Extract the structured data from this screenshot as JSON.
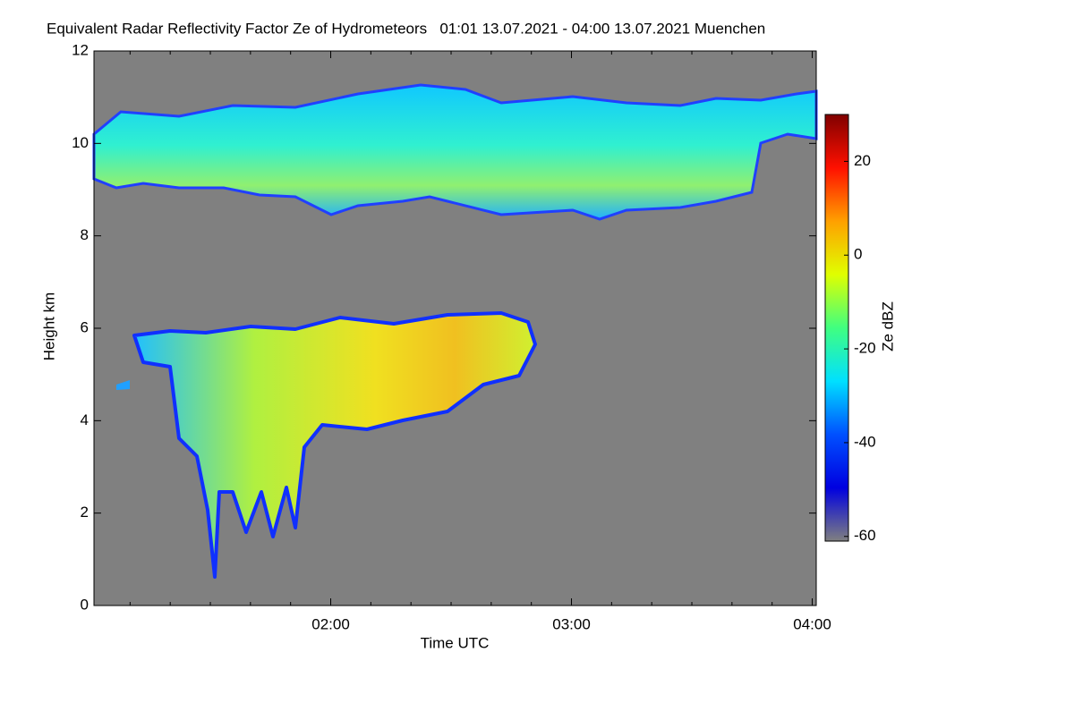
{
  "chart_data": {
    "type": "heatmap",
    "title": "Equivalent Radar Reflectivity Factor Ze of Hydrometeors   01:01 13.07.2021 - 04:00 13.07.2021 Muenchen",
    "x_label": "Time UTC",
    "y_label": "Height km",
    "colorbar_label": "Ze dBZ",
    "xlim": [
      61,
      241
    ],
    "xticks": [
      {
        "value": 120,
        "label": "02:00"
      },
      {
        "value": 180,
        "label": "03:00"
      },
      {
        "value": 240,
        "label": "04:00"
      }
    ],
    "xminorticks": [
      70,
      80,
      90,
      100,
      110,
      130,
      140,
      150,
      160,
      170,
      190,
      200,
      210,
      220,
      230
    ],
    "ylim": [
      0,
      12
    ],
    "yticks": [
      0,
      2,
      4,
      6,
      8,
      10,
      12
    ],
    "zlim": [
      -61,
      30
    ],
    "zticks": [
      -60,
      -40,
      -20,
      0,
      20
    ],
    "colormap": [
      "#808080",
      "#0000e0",
      "#0050ff",
      "#00e0ff",
      "#40ff80",
      "#e0ff00",
      "#ffa000",
      "#ff1000",
      "#800000"
    ],
    "background": "#808080"
  }
}
